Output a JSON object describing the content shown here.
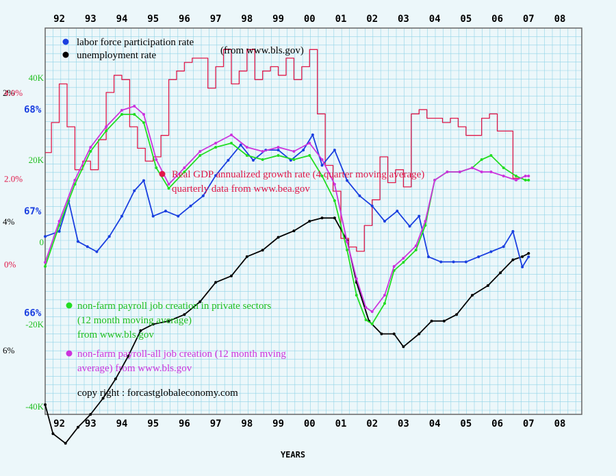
{
  "chart_data": {
    "type": "line",
    "years": [
      "92",
      "93",
      "94",
      "95",
      "96",
      "97",
      "98",
      "99",
      "00",
      "01",
      "02",
      "03",
      "04",
      "05",
      "06",
      "07",
      "08"
    ],
    "xlabel": "YEARS",
    "source_note": "(from www.bls.gov)",
    "copyright": "copy right : forcastglobaleconomy.com",
    "colors": {
      "lfpr": "#1a3fe0",
      "unemp": "#000000",
      "gdp": "#e0194a",
      "private": "#22dd22",
      "all": "#cc33dd",
      "grid": "#8fd3e6",
      "frame": "#666666",
      "background": "#ecf7fa"
    },
    "axes": {
      "unemployment_ticks": [
        "2%",
        "4%",
        "6%"
      ],
      "unemployment_range": [
        1.0,
        7.0
      ],
      "lfpr_ticks": [
        "68%",
        "67%",
        "66%"
      ],
      "lfpr_range": [
        65.0,
        68.8
      ],
      "gdp_ticks": [
        "4.0%",
        "2.0%",
        "0%"
      ],
      "gdp_range": [
        -3.5,
        5.5
      ],
      "jobs_ticks": [
        "40K",
        "20K",
        "0",
        "-20K",
        "-40K"
      ],
      "jobs_range": [
        -42,
        52
      ]
    },
    "legend": {
      "lfpr": "labor force participation rate",
      "unemp": "unemployment rate",
      "gdp_line1": "Real GDP annualized growth rate (4 quarter moving average)",
      "gdp_line2": "quarterly data from www.bea.gov",
      "private_line1": "non-farm payroll job creation in private sectors",
      "private_line2": "(12 month moving average)",
      "private_line3": "from www.bls.gov",
      "all_line1": "non-farm payroll-all job creation (12 month mving",
      "all_line2": "average) from www.bls.gov"
    },
    "series": [
      {
        "name": "labor force participation rate",
        "key": "lfpr",
        "x": [
          1991.55,
          1992.0,
          1992.3,
          1992.6,
          1992.9,
          1993.2,
          1993.6,
          1994.0,
          1994.4,
          1994.7,
          1995.0,
          1995.4,
          1995.8,
          1996.2,
          1996.6,
          1997.0,
          1997.4,
          1997.8,
          1998.2,
          1998.6,
          1999.0,
          1999.4,
          1999.8,
          2000.1,
          2000.4,
          2000.8,
          2001.2,
          2001.6,
          2002.0,
          2002.4,
          2002.8,
          2003.2,
          2003.5,
          2003.8,
          2004.2,
          2004.6,
          2005.0,
          2005.4,
          2005.8,
          2006.2,
          2006.5,
          2006.8,
          2007.0
        ],
        "y": [
          66.75,
          66.8,
          67.1,
          66.7,
          66.65,
          66.6,
          66.75,
          66.95,
          67.2,
          67.3,
          66.95,
          67.0,
          66.95,
          67.05,
          67.15,
          67.35,
          67.5,
          67.65,
          67.5,
          67.6,
          67.6,
          67.5,
          67.6,
          67.75,
          67.45,
          67.6,
          67.3,
          67.15,
          67.05,
          66.9,
          67.0,
          66.85,
          66.95,
          66.55,
          66.5,
          66.5,
          66.5,
          66.55,
          66.6,
          66.65,
          66.8,
          66.45,
          66.55
        ]
      },
      {
        "name": "unemployment rate",
        "key": "unemp",
        "x": [
          1991.55,
          1991.8,
          1992.2,
          1992.6,
          1993.0,
          1993.4,
          1993.8,
          1994.2,
          1994.6,
          1995.0,
          1995.5,
          1996.0,
          1996.5,
          1997.0,
          1997.5,
          1998.0,
          1998.5,
          1999.0,
          1999.5,
          2000.0,
          2000.4,
          2000.8,
          2001.2,
          2001.5,
          2001.9,
          2002.3,
          2002.7,
          2003.0,
          2003.5,
          2003.9,
          2004.3,
          2004.7,
          2005.2,
          2005.7,
          2006.1,
          2006.5,
          2006.8,
          2007.0
        ],
        "y": [
          6.85,
          7.3,
          7.45,
          7.2,
          7.0,
          6.75,
          6.45,
          6.1,
          5.7,
          5.6,
          5.55,
          5.45,
          5.25,
          4.95,
          4.85,
          4.55,
          4.45,
          4.25,
          4.15,
          4.0,
          3.95,
          3.95,
          4.3,
          4.95,
          5.55,
          5.75,
          5.75,
          5.95,
          5.75,
          5.55,
          5.55,
          5.45,
          5.15,
          5.0,
          4.8,
          4.6,
          4.55,
          4.5
        ]
      },
      {
        "name": "Real GDP annualized growth rate (4 quarter moving average)",
        "key": "gdp",
        "x": [
          1991.55,
          1991.75,
          1992.0,
          1992.25,
          1992.5,
          1992.75,
          1993.0,
          1993.25,
          1993.5,
          1993.75,
          1994.0,
          1994.25,
          1994.5,
          1994.75,
          1995.0,
          1995.25,
          1995.5,
          1995.75,
          1996.0,
          1996.25,
          1996.5,
          1996.75,
          1997.0,
          1997.25,
          1997.5,
          1997.75,
          1998.0,
          1998.25,
          1998.5,
          1998.75,
          1999.0,
          1999.25,
          1999.5,
          1999.75,
          2000.0,
          2000.25,
          2000.5,
          2000.75,
          2001.0,
          2001.25,
          2001.5,
          2001.75,
          2002.0,
          2002.25,
          2002.5,
          2002.75,
          2003.0,
          2003.25,
          2003.5,
          2003.75,
          2004.0,
          2004.25,
          2004.5,
          2004.75,
          2005.0,
          2005.25,
          2005.5,
          2005.75,
          2006.0,
          2006.25,
          2006.5,
          2006.75
        ],
        "y": [
          2.6,
          3.3,
          4.2,
          3.2,
          2.2,
          2.4,
          2.2,
          2.9,
          4.0,
          4.4,
          4.3,
          3.2,
          2.7,
          2.4,
          2.5,
          3.0,
          4.3,
          4.5,
          4.7,
          4.8,
          4.8,
          4.1,
          4.6,
          5.0,
          4.2,
          4.5,
          5.0,
          4.3,
          4.5,
          4.6,
          4.4,
          4.8,
          4.3,
          4.6,
          5.0,
          3.5,
          2.3,
          1.7,
          0.6,
          0.4,
          0.3,
          0.9,
          1.5,
          2.5,
          1.9,
          2.2,
          1.8,
          3.5,
          3.6,
          3.4,
          3.4,
          3.3,
          3.4,
          3.2,
          3.0,
          3.0,
          3.4,
          3.5,
          3.1,
          3.1,
          2.0,
          2.0
        ]
      },
      {
        "name": "non-farm payroll job creation in private sectors (12 month moving average)",
        "key": "private",
        "x": [
          1991.55,
          1992.0,
          1992.5,
          1993.0,
          1993.5,
          1994.0,
          1994.4,
          1994.7,
          1995.1,
          1995.5,
          1996.0,
          1996.5,
          1997.0,
          1997.5,
          1998.0,
          1998.5,
          1999.0,
          1999.5,
          2000.0,
          2000.4,
          2000.8,
          2001.2,
          2001.5,
          2001.8,
          2002.0,
          2002.4,
          2002.7,
          2003.0,
          2003.4,
          2003.7,
          2004.0,
          2004.4,
          2004.8,
          2005.2,
          2005.5,
          2005.8,
          2006.2,
          2006.6,
          2006.9,
          2007.0
        ],
        "y": [
          -6,
          4,
          14,
          22,
          27,
          31,
          31,
          29,
          18,
          13,
          17,
          21,
          23,
          24,
          21,
          20,
          21,
          20,
          21,
          16,
          10,
          -2,
          -13,
          -19,
          -20,
          -15,
          -7,
          -5,
          -2,
          4,
          15,
          17,
          17,
          18,
          20,
          21,
          18,
          16,
          15,
          15
        ]
      },
      {
        "name": "non-farm payroll-all job creation (12 month moving average)",
        "key": "all",
        "x": [
          1991.55,
          1992.0,
          1992.5,
          1993.0,
          1993.5,
          1994.0,
          1994.4,
          1994.7,
          1995.1,
          1995.5,
          1996.0,
          1996.5,
          1997.0,
          1997.5,
          1998.0,
          1998.5,
          1999.0,
          1999.5,
          2000.0,
          2000.4,
          2000.8,
          2001.2,
          2001.5,
          2001.8,
          2002.0,
          2002.4,
          2002.7,
          2003.0,
          2003.4,
          2003.7,
          2004.0,
          2004.4,
          2004.8,
          2005.2,
          2005.5,
          2005.8,
          2006.2,
          2006.6,
          2006.9,
          2007.0
        ],
        "y": [
          -5,
          5,
          15,
          23,
          28,
          32,
          33,
          31,
          20,
          14,
          18,
          22,
          24,
          26,
          23,
          22,
          23,
          22,
          24,
          20,
          14,
          0,
          -9,
          -16,
          -17,
          -13,
          -6,
          -4,
          -1,
          5,
          15,
          17,
          17,
          18,
          17,
          17,
          16,
          15,
          16,
          16
        ]
      }
    ]
  }
}
